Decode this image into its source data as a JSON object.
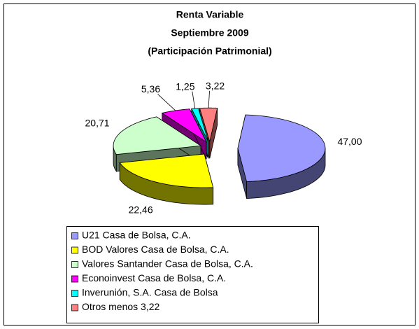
{
  "chart_data": {
    "type": "pie3d",
    "title": [
      "Renta Variable",
      "Septiembre 2009",
      "(Participación Patrimonial)"
    ],
    "categories": [
      "U21 Casa de Bolsa, C.A.",
      "BOD Valores Casa de Bolsa, C.A.",
      "Valores Santander Casa de Bolsa, C.A.",
      "Econoinvest Casa de Bolsa, C.A.",
      "Inverunión, S.A. Casa de Bolsa",
      "Otros menos  3,22"
    ],
    "values": [
      47.0,
      22.46,
      20.71,
      5.36,
      1.25,
      3.22
    ],
    "value_labels": [
      "47,00",
      "22,46",
      "20,71",
      "5,36",
      "1,25",
      "3,22"
    ],
    "colors": [
      "#9999ff",
      "#ffff00",
      "#ccffcc",
      "#ff00ff",
      "#00ffff",
      "#ff8080"
    ],
    "legend": "bottom"
  }
}
